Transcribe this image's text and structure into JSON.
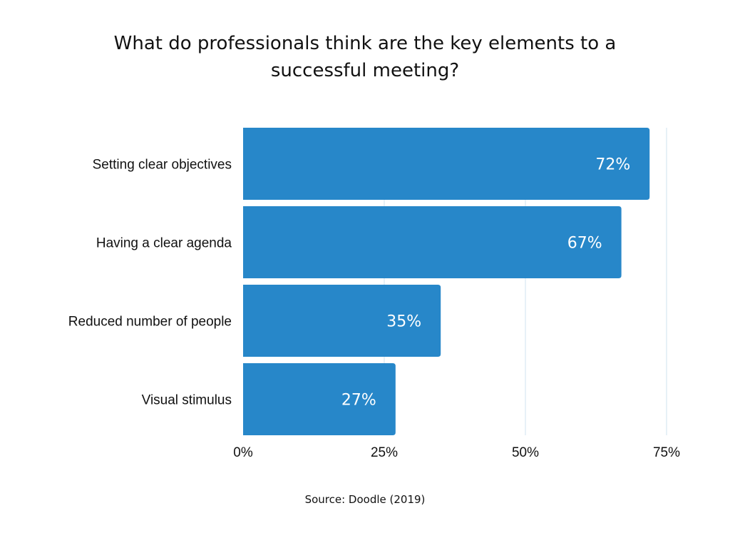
{
  "chart_data": {
    "type": "bar",
    "orientation": "horizontal",
    "title": "What do professionals think are the key elements to a successful meeting?",
    "categories": [
      "Setting clear objectives",
      "Having a clear agenda",
      "Reduced number of people",
      "Visual stimulus"
    ],
    "values": [
      72,
      67,
      35,
      27
    ],
    "value_labels": [
      "72%",
      "67%",
      "35%",
      "27%"
    ],
    "xlim": [
      0,
      75
    ],
    "x_ticks": [
      0,
      25,
      50,
      75
    ],
    "x_tick_labels": [
      "0%",
      "25%",
      "50%",
      "75%"
    ],
    "grid": "vertical",
    "bar_color": "#2787c9",
    "grid_color": "#cfe3ef",
    "source": "Source: Doodle (2019)"
  }
}
